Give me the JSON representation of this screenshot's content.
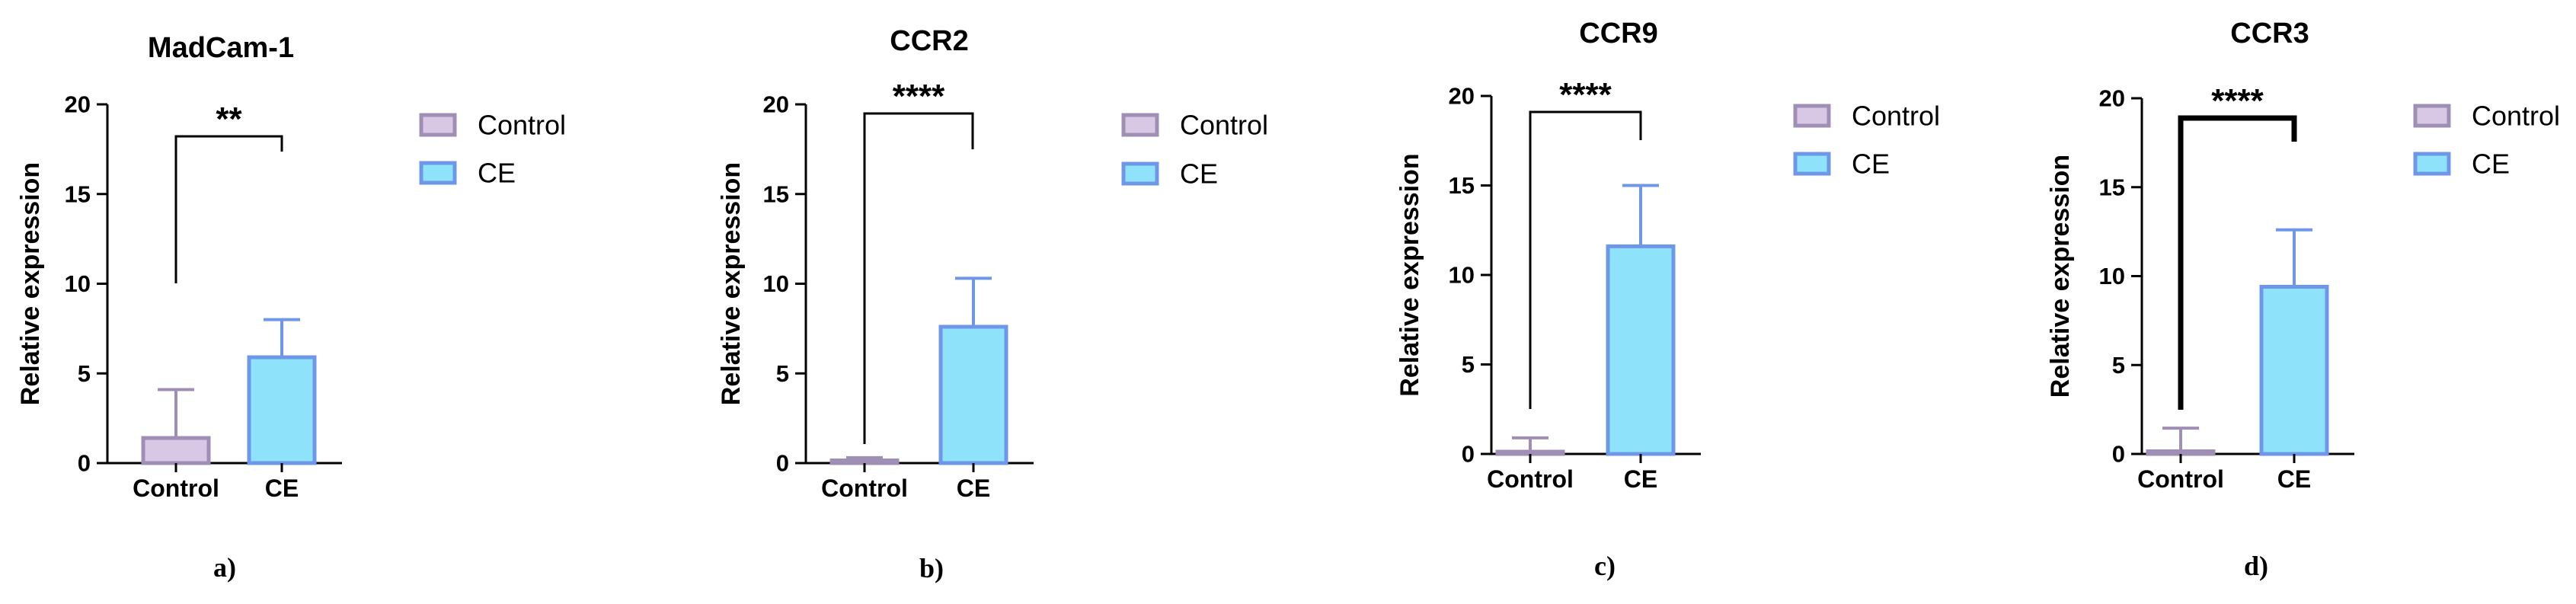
{
  "colors": {
    "control_fill": "#d9c7e6",
    "control_stroke": "#9f8fb4",
    "ce_fill": "#8ee3fb",
    "ce_stroke": "#6f97e8",
    "axis": "#000000"
  },
  "chart_data": [
    {
      "type": "bar",
      "panel": "a)",
      "title": "MadCam-1",
      "xlabel": "",
      "ylabel": "Relative expression",
      "ylim": [
        0,
        20
      ],
      "yticks": [
        0,
        5,
        10,
        15,
        20
      ],
      "categories": [
        "Control",
        "CE"
      ],
      "values": [
        1.4,
        5.9
      ],
      "errors": [
        2.7,
        2.1
      ],
      "significance": "**",
      "legend": [
        "Control",
        "CE"
      ]
    },
    {
      "type": "bar",
      "panel": "b)",
      "title": "CCR2",
      "xlabel": "",
      "ylabel": "Relative expression",
      "ylim": [
        0,
        20
      ],
      "yticks": [
        0,
        5,
        10,
        15,
        20
      ],
      "categories": [
        "Control",
        "CE"
      ],
      "values": [
        0.15,
        7.6
      ],
      "errors": [
        0.15,
        2.7
      ],
      "significance": "****",
      "legend": [
        "Control",
        "CE"
      ]
    },
    {
      "type": "bar",
      "panel": "c)",
      "title": "CCR9",
      "xlabel": "",
      "ylabel": "Relative expression",
      "ylim": [
        0,
        20
      ],
      "yticks": [
        0,
        5,
        10,
        15,
        20
      ],
      "categories": [
        "Control",
        "CE"
      ],
      "values": [
        0.1,
        11.6
      ],
      "errors": [
        0.8,
        3.4
      ],
      "significance": "****",
      "legend": [
        "Control",
        "CE"
      ]
    },
    {
      "type": "bar",
      "panel": "d)",
      "title": "CCR3",
      "xlabel": "",
      "ylabel": "Relative expression",
      "ylim": [
        0,
        20
      ],
      "yticks": [
        0,
        5,
        10,
        15,
        20
      ],
      "categories": [
        "Control",
        "CE"
      ],
      "values": [
        0.15,
        9.4
      ],
      "errors": [
        1.3,
        3.2
      ],
      "significance": "****",
      "legend": [
        "Control",
        "CE"
      ]
    }
  ]
}
